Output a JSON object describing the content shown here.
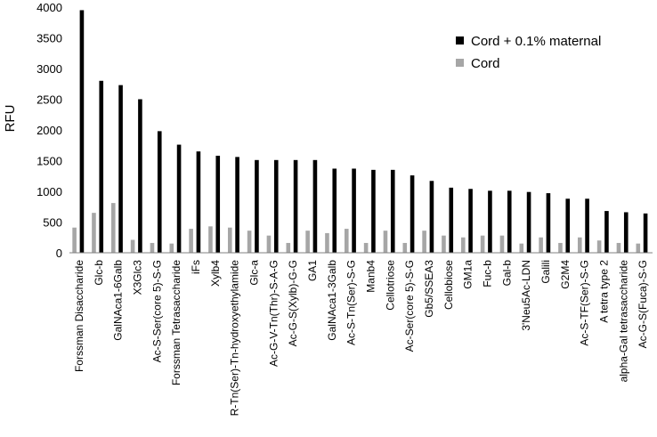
{
  "chart_data": {
    "type": "bar",
    "title": "",
    "xlabel": "",
    "ylabel": "RFU",
    "ylim": [
      0,
      4000
    ],
    "yticks": [
      0,
      500,
      1000,
      1500,
      2000,
      2500,
      3000,
      3500,
      4000
    ],
    "grid": false,
    "legend_position": "top-right",
    "categories": [
      "Forssman Disaccharide",
      "Glc-b",
      "GalNAca1-6Galb",
      "X3Glc3",
      "Ac-S-Ser(core 5)-S-G",
      "Forssman Tetrasaccharide",
      "iFs",
      "Xylb4",
      "R-Tn(Ser)-Tn-hydroxyethylamide",
      "Glc-a",
      "Ac-G-V-Tn(Thr)-S-A-G",
      "Ac-G-S(Xylb)-G-G",
      "GA1",
      "GalNAca1-3Galb",
      "Ac-S-Tn(Ser)-S-G",
      "Manb4",
      "Cellotriose",
      "Ac-Ser(core 5)-S-G",
      "Gb5/SSEA3",
      "Cellobiose",
      "GM1a",
      "Fuc-b",
      "Gal-b",
      "3'Neu5Ac-LDN",
      "Galili",
      "G2M4",
      "Ac-S-TF(Ser)-S-G",
      "A tetra type 2",
      "alpha-Gal tetrasaccharide",
      "Ac-G-S(Fuca)-S-G"
    ],
    "series": [
      {
        "name": "Cord + 0.1% maternal",
        "color": "#000000",
        "values": [
          3950,
          2800,
          2730,
          2500,
          1980,
          1760,
          1650,
          1580,
          1560,
          1510,
          1510,
          1510,
          1510,
          1370,
          1370,
          1350,
          1350,
          1260,
          1170,
          1060,
          1040,
          1010,
          1010,
          990,
          970,
          880,
          880,
          680,
          660,
          640
        ]
      },
      {
        "name": "Cord",
        "color": "#a6a6a6",
        "values": [
          410,
          650,
          810,
          210,
          160,
          150,
          390,
          430,
          410,
          360,
          280,
          160,
          360,
          320,
          390,
          160,
          360,
          160,
          360,
          280,
          250,
          280,
          280,
          150,
          250,
          160,
          250,
          200,
          160,
          150
        ]
      }
    ]
  }
}
